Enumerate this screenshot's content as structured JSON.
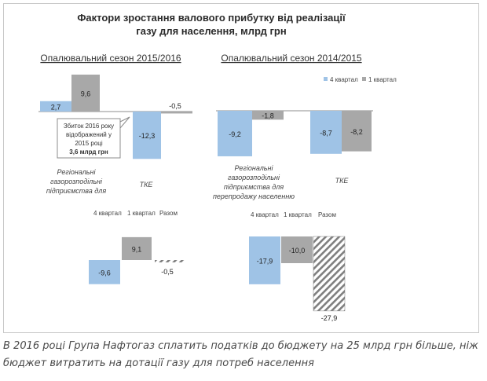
{
  "colors": {
    "q4": "#9fc3e6",
    "q1": "#a8a8a8",
    "total_hatch": "#7f7f7f",
    "axis": "#8c8c8c",
    "title": "#2b2b2b",
    "callout_border": "#8c8c8c"
  },
  "chart_data": {
    "type": "bar",
    "title": "Фактори зростання валового прибутку від реалізації газу для населення, млрд грн",
    "legend": {
      "placement": "top-right",
      "entries": [
        {
          "name": "4 квартал",
          "color": "#9fc3e6"
        },
        {
          "name": "1 квартал",
          "color": "#a8a8a8"
        }
      ]
    },
    "seasons": [
      {
        "title": "Опалювальний сезон 2015/2016",
        "categories": [
          "Регіональні газорозподільні підприємства для",
          "ТКЕ"
        ],
        "series": [
          {
            "name": "4 квартал",
            "values": [
              2.7,
              -12.3
            ]
          },
          {
            "name": "1 квартал",
            "values": [
              9.6,
              -0.5
            ]
          }
        ],
        "value_labels": {
          "4 квартал": [
            "2,7",
            "-12,3"
          ],
          "1 квартал": [
            "9,6",
            "-0,5"
          ]
        },
        "totals_chart": {
          "categories": [
            "4 квартал",
            "1 квартал",
            "Разом"
          ],
          "values": [
            -9.6,
            9.1,
            -0.5
          ],
          "labels": [
            "-9,6",
            "9,1",
            "-0,5"
          ]
        }
      },
      {
        "title": "Опалювальний сезон 2014/2015",
        "categories": [
          "Регіональні газорозподільні підприємства для перепродажу населенню",
          "ТКЕ"
        ],
        "series": [
          {
            "name": "4 квартал",
            "values": [
              -9.2,
              -8.7
            ]
          },
          {
            "name": "1 квартал",
            "values": [
              -1.8,
              -8.2
            ]
          }
        ],
        "value_labels": {
          "4 квартал": [
            "-9,2",
            "-8,7"
          ],
          "1 квартал": [
            "-1,8",
            "-8,2"
          ]
        },
        "totals_chart": {
          "categories": [
            "4 квартал",
            "1 квартал",
            "Разом"
          ],
          "values": [
            -17.9,
            -10.0,
            -27.9
          ],
          "labels": [
            "-17,9",
            "-10,0",
            "-27,9"
          ]
        }
      }
    ],
    "annotation": {
      "line1": "Збиток 2016 року",
      "line2": "відображений у",
      "line3": "2015 році",
      "line4": "3,6 млрд грн"
    }
  },
  "caption": "В 2016 році Група Нафтогаз сплатить податків до бюджету на 25 млрд грн більше, ніж бюджет витратить на дотації газу для потреб населення"
}
